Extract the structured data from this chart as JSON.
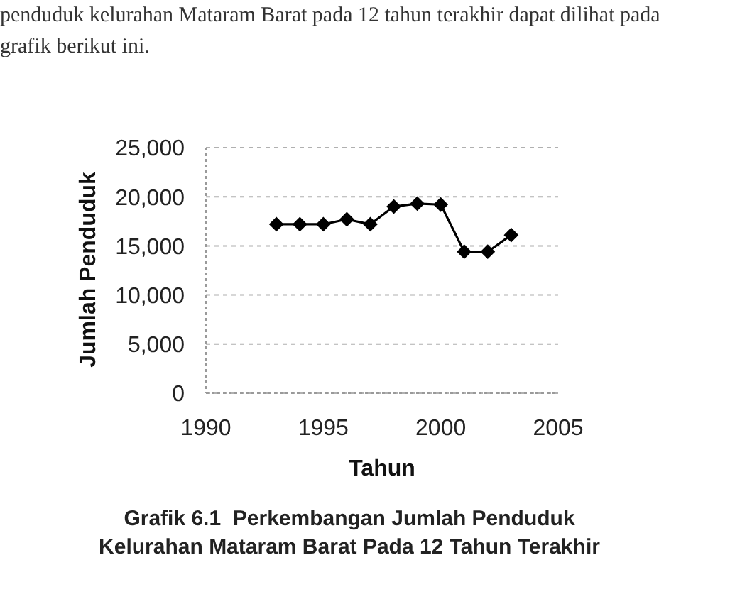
{
  "chart_data": {
    "type": "line",
    "title": "Grafik 6.1  Perkembangan Jumlah Penduduk Kelurahan Mataram Barat Pada 12 Tahun Terakhir",
    "xlabel": "Tahun",
    "ylabel": "Jumlah Penduduk",
    "annotations": [
      "penduduk kelurahan Mataram Barat pada 12 tahun terakhir dapat dilihat pada grafik berikut ini."
    ],
    "x": [
      1993,
      1994,
      1995,
      1996,
      1997,
      1998,
      1999,
      2000,
      2001,
      2002,
      2003
    ],
    "series": [
      {
        "color": "#000000",
        "values": [
          17200,
          17200,
          17200,
          17700,
          17200,
          19000,
          19300,
          19200,
          14400,
          14400,
          16100
        ]
      }
    ],
    "xlim": [
      1990,
      2005
    ],
    "xticks": [
      1990,
      1995,
      2000,
      2005
    ],
    "ylim": [
      0,
      25000
    ],
    "yticks": [
      0,
      {
        "value": 5000,
        "label": "5,000"
      },
      {
        "value": 10000,
        "label": "10,000"
      },
      {
        "value": 15000,
        "label": "15,000"
      },
      {
        "value": 20000,
        "label": "20,000"
      },
      {
        "value": 25000,
        "label": "25,000"
      }
    ],
    "grid": "y",
    "marker": "diamond",
    "line_style": "solid"
  }
}
